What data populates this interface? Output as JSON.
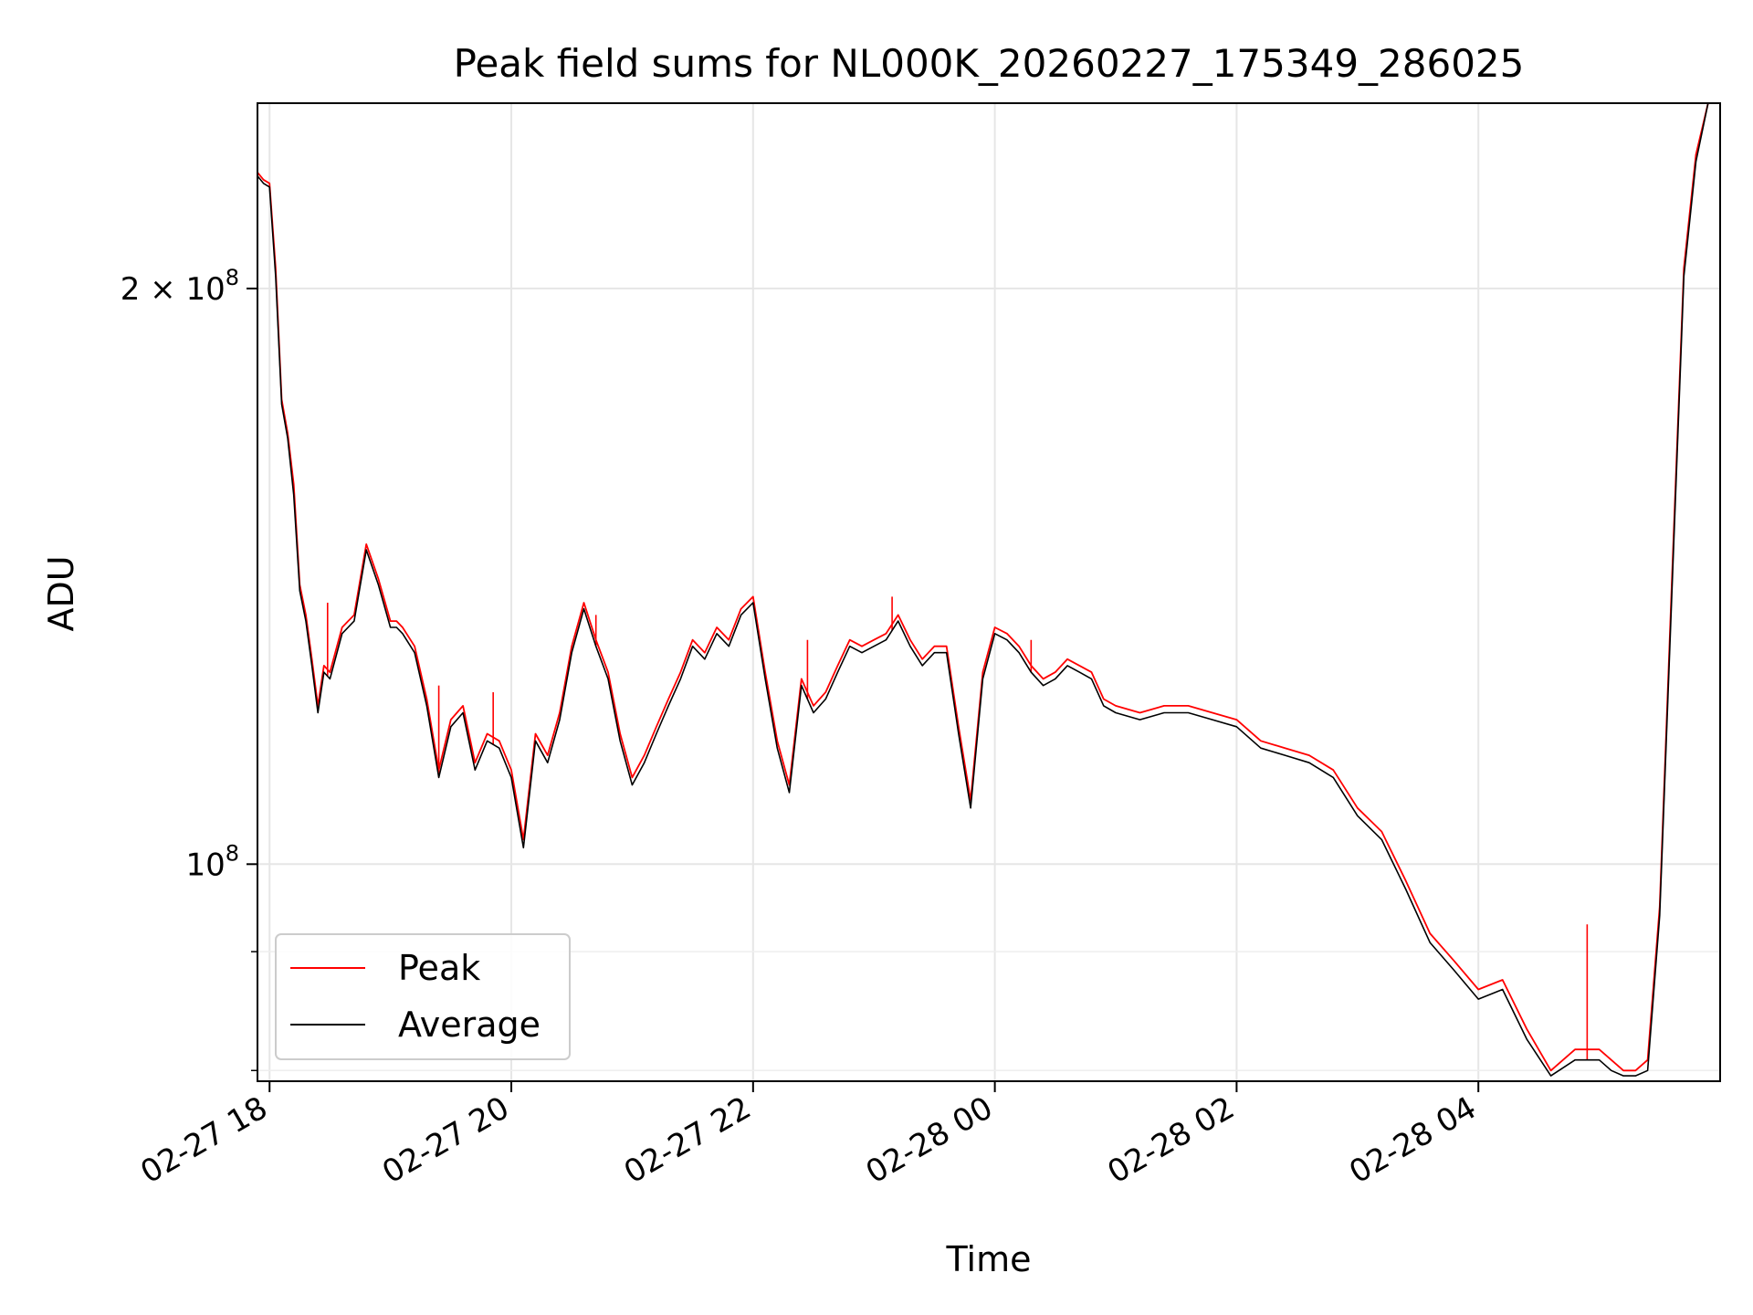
{
  "chart_data": {
    "type": "line",
    "title": "Peak field sums for NL000K_20260227_175349_286025",
    "xlabel": "Time",
    "ylabel": "ADU",
    "yscale": "log",
    "ylim": [
      77000000,
      250000000
    ],
    "xlim_hours": [
      -0.1,
      12.0
    ],
    "grid": true,
    "legend_position": "lower-left",
    "x_ticks": [
      {
        "hour": 0,
        "label": "02-27 18"
      },
      {
        "hour": 2,
        "label": "02-27 20"
      },
      {
        "hour": 4,
        "label": "02-27 22"
      },
      {
        "hour": 6,
        "label": "02-28 00"
      },
      {
        "hour": 8,
        "label": "02-28 02"
      },
      {
        "hour": 10,
        "label": "02-28 04"
      }
    ],
    "y_major_ticks": [
      {
        "value": 100000000,
        "base": "10",
        "exp": "8",
        "coef": ""
      },
      {
        "value": 200000000,
        "base": "10",
        "exp": "8",
        "coef": "2 × "
      }
    ],
    "y_minor_ticks": [
      78000000,
      90000000,
      300000000
    ],
    "series": [
      {
        "name": "Peak",
        "color": "#ff0000",
        "hours": [
          -0.1,
          -0.05,
          0.0,
          0.05,
          0.1,
          0.15,
          0.2,
          0.25,
          0.3,
          0.35,
          0.4,
          0.45,
          0.5,
          0.6,
          0.7,
          0.8,
          0.9,
          1.0,
          1.05,
          1.1,
          1.2,
          1.3,
          1.4,
          1.5,
          1.6,
          1.7,
          1.8,
          1.9,
          2.0,
          2.1,
          2.2,
          2.3,
          2.4,
          2.5,
          2.6,
          2.7,
          2.8,
          2.9,
          3.0,
          3.1,
          3.2,
          3.3,
          3.4,
          3.5,
          3.6,
          3.7,
          3.8,
          3.9,
          4.0,
          4.1,
          4.2,
          4.3,
          4.4,
          4.5,
          4.6,
          4.7,
          4.8,
          4.9,
          5.0,
          5.1,
          5.2,
          5.3,
          5.4,
          5.5,
          5.6,
          5.7,
          5.8,
          5.9,
          6.0,
          6.1,
          6.2,
          6.3,
          6.4,
          6.5,
          6.6,
          6.7,
          6.8,
          6.9,
          7.0,
          7.2,
          7.4,
          7.6,
          7.8,
          8.0,
          8.2,
          8.4,
          8.6,
          8.8,
          9.0,
          9.2,
          9.4,
          9.6,
          9.8,
          10.0,
          10.2,
          10.4,
          10.6,
          10.8,
          10.9,
          11.0,
          11.1,
          11.2,
          11.3,
          11.4,
          11.5,
          11.6,
          11.7,
          11.8,
          11.9,
          12.0
        ],
        "values": [
          230000000,
          228000000,
          227000000,
          205000000,
          175000000,
          168000000,
          158000000,
          140000000,
          135000000,
          128000000,
          121000000,
          127000000,
          126000000,
          133000000,
          135000000,
          147000000,
          141000000,
          134000000,
          134000000,
          133000000,
          130000000,
          122000000,
          112000000,
          119000000,
          121000000,
          113000000,
          117000000,
          116000000,
          112000000,
          103000000,
          117000000,
          114000000,
          120000000,
          130000000,
          137000000,
          131000000,
          126000000,
          117000000,
          111000000,
          114000000,
          118000000,
          122000000,
          126000000,
          131000000,
          129000000,
          133000000,
          131000000,
          136000000,
          138000000,
          126000000,
          116000000,
          110000000,
          125000000,
          121000000,
          123000000,
          127000000,
          131000000,
          130000000,
          131000000,
          132000000,
          135000000,
          131000000,
          128000000,
          130000000,
          130000000,
          118000000,
          108000000,
          126000000,
          133000000,
          132000000,
          130000000,
          127000000,
          125000000,
          126000000,
          128000000,
          127000000,
          126000000,
          122000000,
          121000000,
          120000000,
          121000000,
          121000000,
          120000000,
          119000000,
          116000000,
          115000000,
          114000000,
          112000000,
          107000000,
          104000000,
          98000000,
          92000000,
          89000000,
          86000000,
          87000000,
          82000000,
          78000000,
          80000000,
          80000000,
          80000000,
          79000000,
          78000000,
          78000000,
          79000000,
          95000000,
          140000000,
          205000000,
          235000000,
          250000000,
          250000000
        ],
        "spikes": [
          {
            "hour": 0.48,
            "value": 137000000
          },
          {
            "hour": 1.4,
            "value": 124000000
          },
          {
            "hour": 1.85,
            "value": 123000000
          },
          {
            "hour": 2.7,
            "value": 135000000
          },
          {
            "hour": 4.45,
            "value": 131000000
          },
          {
            "hour": 5.15,
            "value": 138000000
          },
          {
            "hour": 6.3,
            "value": 131000000
          },
          {
            "hour": 10.9,
            "value": 93000000
          }
        ]
      },
      {
        "name": "Average",
        "color": "#000000",
        "hours": [
          -0.1,
          -0.05,
          0.0,
          0.05,
          0.1,
          0.15,
          0.2,
          0.25,
          0.3,
          0.35,
          0.4,
          0.45,
          0.5,
          0.6,
          0.7,
          0.8,
          0.9,
          1.0,
          1.05,
          1.1,
          1.2,
          1.3,
          1.4,
          1.5,
          1.6,
          1.7,
          1.8,
          1.9,
          2.0,
          2.1,
          2.2,
          2.3,
          2.4,
          2.5,
          2.6,
          2.7,
          2.8,
          2.9,
          3.0,
          3.1,
          3.2,
          3.3,
          3.4,
          3.5,
          3.6,
          3.7,
          3.8,
          3.9,
          4.0,
          4.1,
          4.2,
          4.3,
          4.4,
          4.5,
          4.6,
          4.7,
          4.8,
          4.9,
          5.0,
          5.1,
          5.2,
          5.3,
          5.4,
          5.5,
          5.6,
          5.7,
          5.8,
          5.9,
          6.0,
          6.1,
          6.2,
          6.3,
          6.4,
          6.5,
          6.6,
          6.7,
          6.8,
          6.9,
          7.0,
          7.2,
          7.4,
          7.6,
          7.8,
          8.0,
          8.2,
          8.4,
          8.6,
          8.8,
          9.0,
          9.2,
          9.4,
          9.6,
          9.8,
          10.0,
          10.2,
          10.4,
          10.6,
          10.8,
          10.9,
          11.0,
          11.1,
          11.2,
          11.3,
          11.4,
          11.5,
          11.6,
          11.7,
          11.8,
          11.9,
          12.0
        ],
        "values": [
          229000000,
          227000000,
          226000000,
          203000000,
          174000000,
          167000000,
          156000000,
          139000000,
          134000000,
          127000000,
          120000000,
          126000000,
          125000000,
          132000000,
          134000000,
          146000000,
          140000000,
          133000000,
          133000000,
          132000000,
          129000000,
          121000000,
          111000000,
          118000000,
          120000000,
          112000000,
          116000000,
          115000000,
          111000000,
          102000000,
          116000000,
          113000000,
          119000000,
          129000000,
          136000000,
          130000000,
          125000000,
          116000000,
          110000000,
          113000000,
          117000000,
          121000000,
          125000000,
          130000000,
          128000000,
          132000000,
          130000000,
          135000000,
          137000000,
          125000000,
          115000000,
          109000000,
          124000000,
          120000000,
          122000000,
          126000000,
          130000000,
          129000000,
          130000000,
          131000000,
          134000000,
          130000000,
          127000000,
          129000000,
          129000000,
          117000000,
          107000000,
          125000000,
          132000000,
          131000000,
          129000000,
          126000000,
          124000000,
          125000000,
          127000000,
          126000000,
          125000000,
          121000000,
          120000000,
          119000000,
          120000000,
          120000000,
          119000000,
          118000000,
          115000000,
          114000000,
          113000000,
          111000000,
          106000000,
          103000000,
          97000000,
          91000000,
          88000000,
          85000000,
          86000000,
          81000000,
          77500000,
          79000000,
          79000000,
          79000000,
          78000000,
          77500000,
          77500000,
          78000000,
          94000000,
          138000000,
          203000000,
          233000000,
          250000000,
          250000000
        ]
      }
    ]
  }
}
